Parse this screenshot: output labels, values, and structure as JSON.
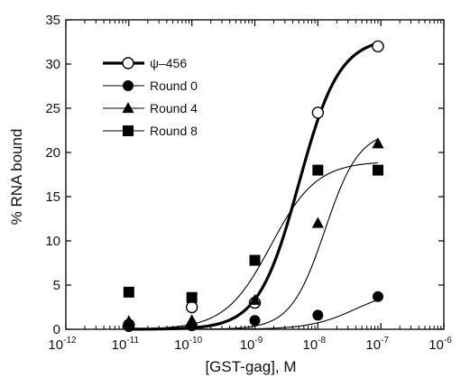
{
  "chart_data": {
    "type": "scatter",
    "xscale": "log",
    "xlim": [
      1e-12,
      1e-06
    ],
    "ylim": [
      0,
      35
    ],
    "xlabel": "[GST-gag], M",
    "ylabel": "% RNA bound",
    "xticks": [
      {
        "base": "10",
        "exp": "-12"
      },
      {
        "base": "10",
        "exp": "-11"
      },
      {
        "base": "10",
        "exp": "-10"
      },
      {
        "base": "10",
        "exp": "-9"
      },
      {
        "base": "10",
        "exp": "-8"
      },
      {
        "base": "10",
        "exp": "-7"
      },
      {
        "base": "10",
        "exp": "-6"
      }
    ],
    "yticks": [
      "0",
      "5",
      "10",
      "15",
      "20",
      "25",
      "30",
      "35"
    ],
    "grid": false,
    "legend_position": "top-left",
    "series": [
      {
        "name": "ψ–456",
        "marker": "open-circle",
        "line": "thick",
        "x": [
          1e-11,
          1e-10,
          1e-09,
          1e-08,
          9e-08
        ],
        "y": [
          0.5,
          2.5,
          3.0,
          24.5,
          32.0
        ],
        "fit": {
          "top": 33.0,
          "ec50": 5e-09,
          "hill": 1.35
        }
      },
      {
        "name": "Round 0",
        "marker": "filled-circle",
        "line": "thin",
        "x": [
          1e-11,
          1e-10,
          1e-09,
          1e-08,
          9e-08
        ],
        "y": [
          0.3,
          0.4,
          1.0,
          1.6,
          3.7
        ],
        "fit": {
          "top": 4.6,
          "ec50": 4e-08,
          "hill": 1.2
        }
      },
      {
        "name": "Round 4",
        "marker": "filled-triangle",
        "line": "thin",
        "x": [
          1e-11,
          1e-10,
          1e-09,
          1e-08,
          9e-08
        ],
        "y": [
          0.9,
          1.0,
          3.3,
          12.0,
          21.0
        ],
        "fit": {
          "top": 22.5,
          "ec50": 1.3e-08,
          "hill": 1.6
        }
      },
      {
        "name": "Round 8",
        "marker": "filled-square",
        "line": "thin",
        "x": [
          1e-11,
          1e-10,
          1e-09,
          1e-08,
          9e-08
        ],
        "y": [
          4.2,
          3.6,
          7.8,
          18.0,
          18.0
        ],
        "fit": {
          "top": 19.0,
          "ec50": 1.8e-09,
          "hill": 1.2
        }
      }
    ]
  }
}
